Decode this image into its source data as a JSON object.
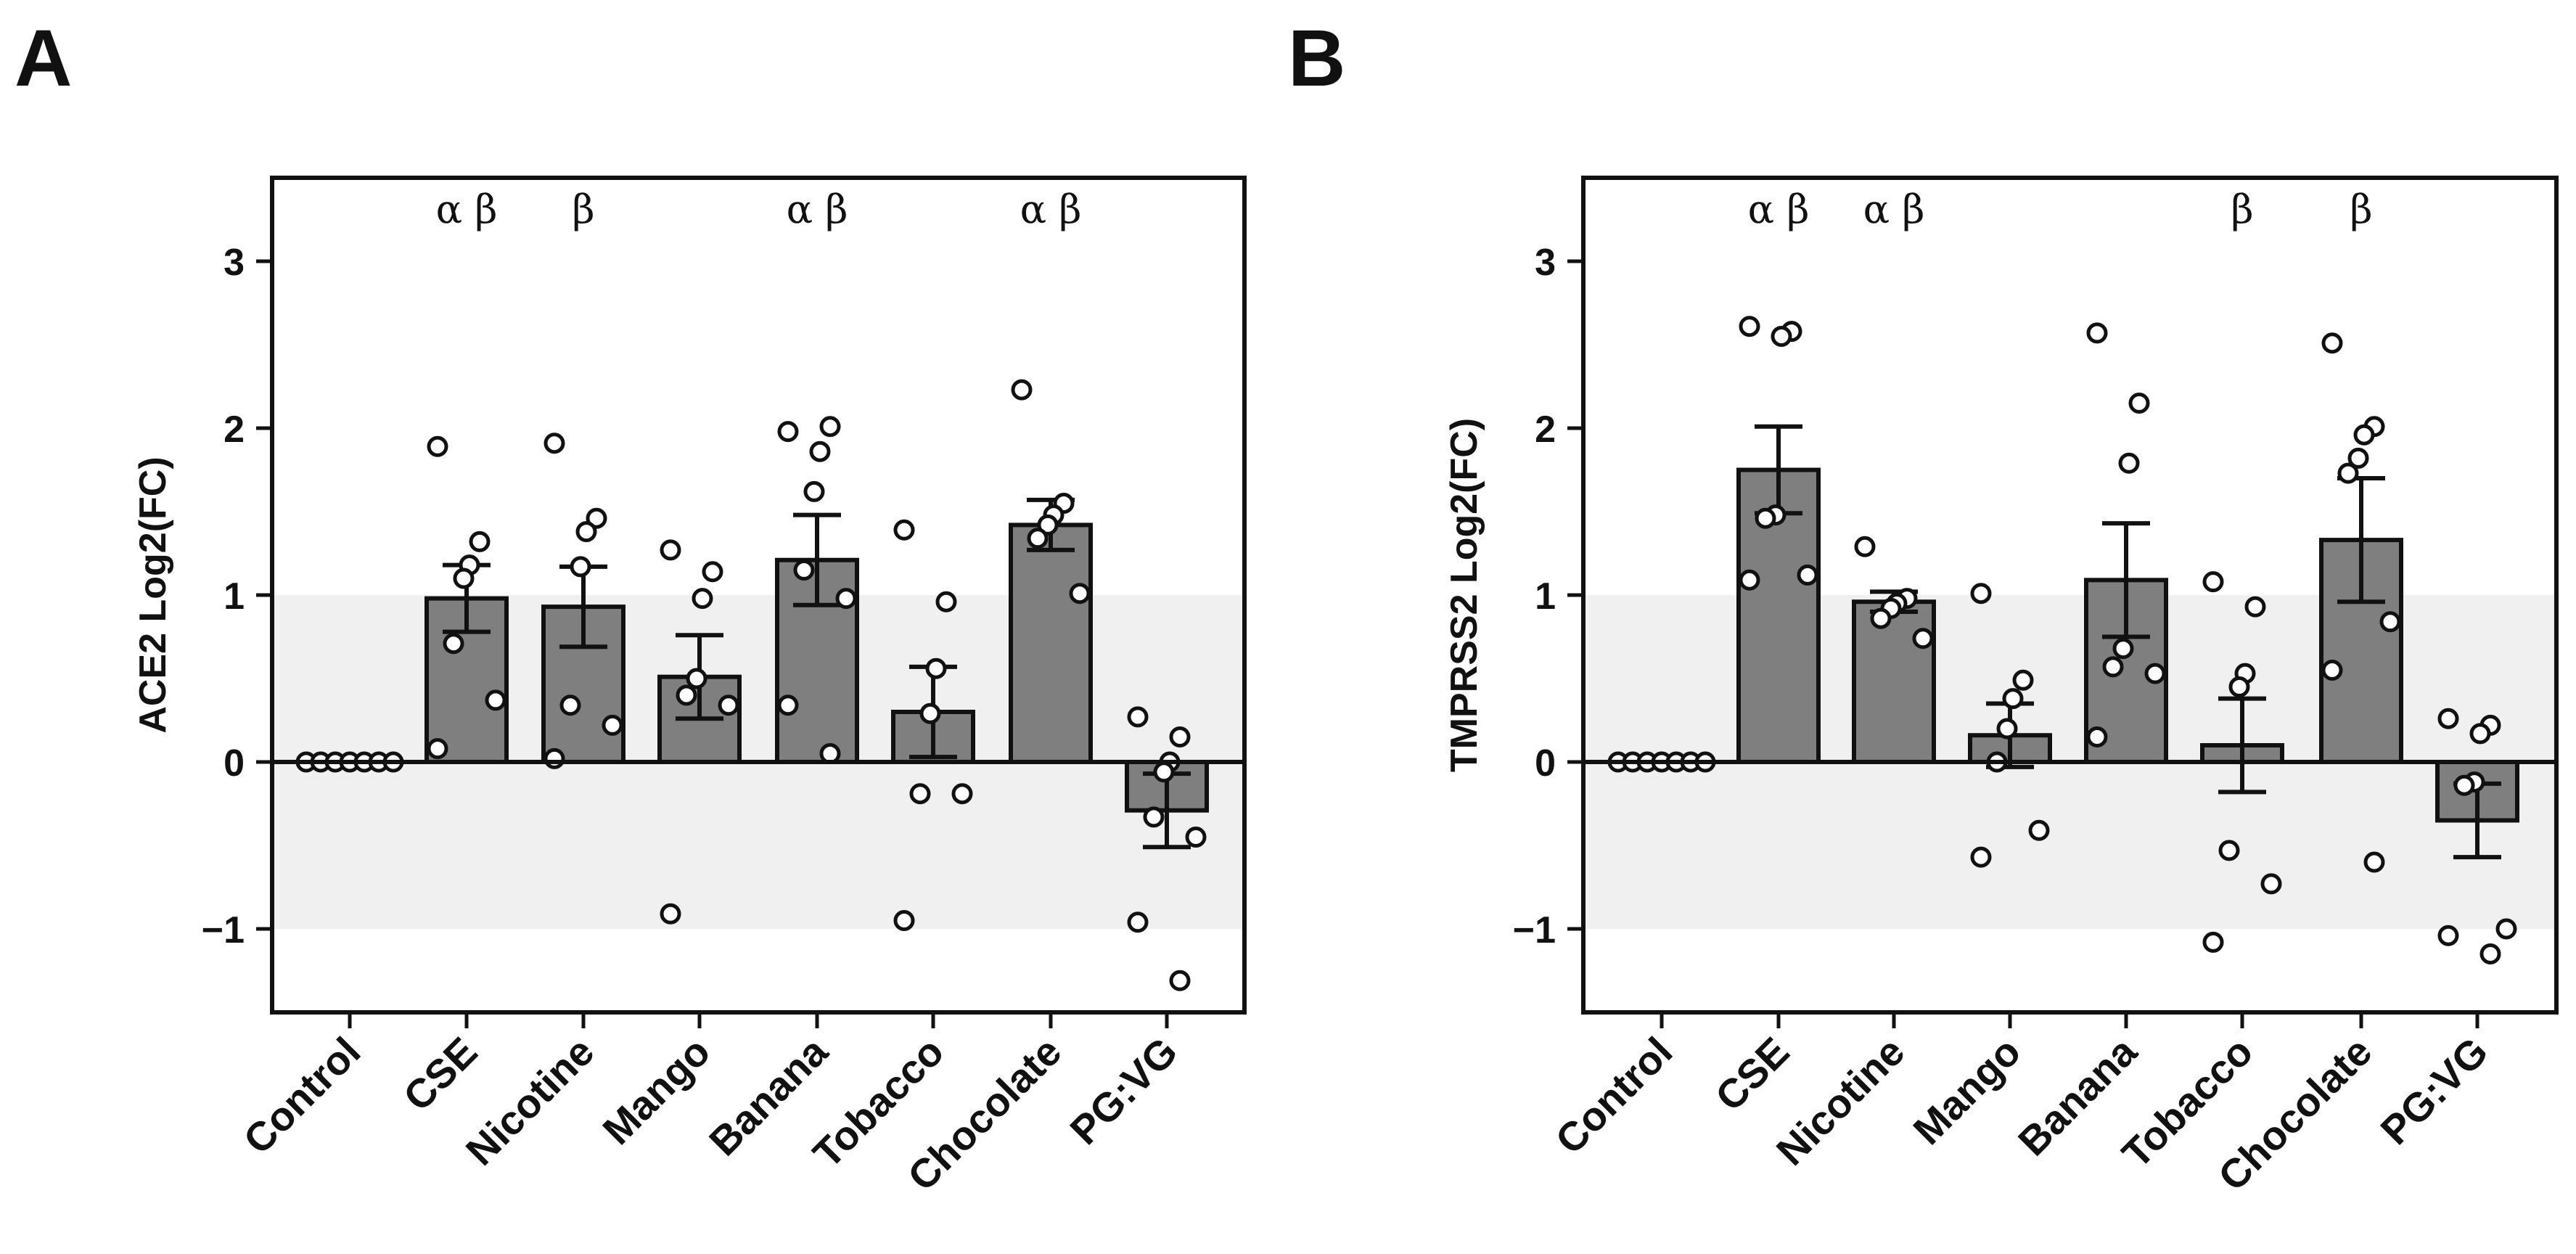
{
  "chart_data": [
    {
      "panel": "A",
      "type": "bar",
      "ylabel": "ACE2 Log2(FC)",
      "ylim": [
        -1.5,
        3.5
      ],
      "yticks": [
        "3",
        "2",
        "1",
        "0",
        "−1"
      ],
      "shade_band": [
        -1,
        1
      ],
      "categories": [
        "Control",
        "CSE",
        "Nicotine",
        "Mango",
        "Banana",
        "Tobacco",
        "Chocolate",
        "PG:VG"
      ],
      "means": [
        0,
        0.98,
        0.93,
        0.51,
        1.21,
        0.3,
        1.42,
        -0.29
      ],
      "sem": [
        0,
        0.2,
        0.24,
        0.25,
        0.27,
        0.27,
        0.15,
        0.22
      ],
      "significance": [
        "",
        "α  β",
        "β",
        "",
        "α  β",
        "",
        "α  β",
        ""
      ],
      "points": [
        [
          0,
          0,
          0,
          0,
          0,
          0,
          0
        ],
        [
          1.89,
          1.32,
          1.18,
          1.1,
          0.71,
          0.37,
          0.08
        ],
        [
          1.91,
          1.46,
          1.38,
          1.17,
          0.34,
          0.22,
          0.02
        ],
        [
          1.27,
          1.14,
          0.98,
          0.5,
          0.4,
          0.34,
          -0.91
        ],
        [
          1.98,
          2.01,
          1.86,
          1.62,
          1.15,
          0.98,
          0.34,
          0.05
        ],
        [
          1.39,
          0.96,
          0.56,
          0.29,
          -0.19,
          -0.19,
          -0.95
        ],
        [
          2.23,
          1.55,
          1.48,
          1.42,
          1.34,
          1.01
        ],
        [
          0.27,
          0.15,
          0.0,
          -0.06,
          -0.33,
          -0.45,
          -0.96,
          -1.31
        ]
      ]
    },
    {
      "panel": "B",
      "type": "bar",
      "ylabel": "TMPRSS2 Log2(FC)",
      "ylim": [
        -1.5,
        3.5
      ],
      "yticks": [
        "3",
        "2",
        "1",
        "0",
        "−1"
      ],
      "shade_band": [
        -1,
        1
      ],
      "categories": [
        "Control",
        "CSE",
        "Nicotine",
        "Mango",
        "Banana",
        "Tobacco",
        "Chocolate",
        "PG:VG"
      ],
      "means": [
        0,
        1.75,
        0.96,
        0.16,
        1.09,
        0.1,
        1.33,
        -0.35
      ],
      "sem": [
        0,
        0.26,
        0.06,
        0.19,
        0.34,
        0.28,
        0.37,
        0.22
      ],
      "significance": [
        "",
        "α  β",
        "α  β",
        "",
        "",
        "β",
        "β",
        ""
      ],
      "points": [
        [
          0,
          0,
          0,
          0,
          0,
          0,
          0
        ],
        [
          2.61,
          2.58,
          2.55,
          1.48,
          1.46,
          1.12,
          1.09
        ],
        [
          1.29,
          0.98,
          0.95,
          0.92,
          0.86,
          0.74
        ],
        [
          1.01,
          0.49,
          0.38,
          0.2,
          0.0,
          -0.41,
          -0.57
        ],
        [
          2.57,
          2.15,
          1.79,
          0.68,
          0.57,
          0.53,
          0.15
        ],
        [
          1.08,
          0.93,
          0.53,
          0.45,
          -0.53,
          -0.73,
          -1.08
        ],
        [
          2.51,
          2.01,
          1.96,
          1.82,
          1.73,
          0.84,
          0.55,
          -0.6
        ],
        [
          0.26,
          0.22,
          0.17,
          -0.12,
          -0.14,
          -1.0,
          -1.04,
          -1.15
        ]
      ]
    }
  ]
}
